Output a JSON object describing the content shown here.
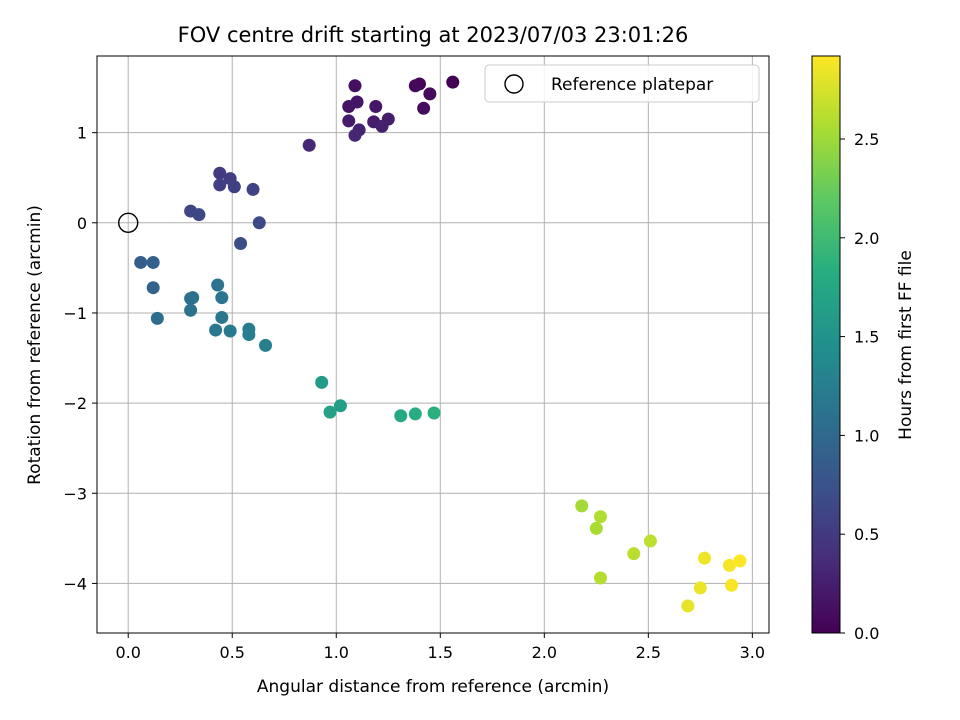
{
  "chart_data": {
    "type": "scatter",
    "title": "FOV centre drift starting at 2023/07/03 23:01:26",
    "xlabel": "Angular distance from reference (arcmin)",
    "ylabel": "Rotation from reference (arcmin)",
    "xlim": [
      -0.15,
      3.08
    ],
    "ylim": [
      -4.55,
      1.85
    ],
    "xticks": [
      0.0,
      0.5,
      1.0,
      1.5,
      2.0,
      2.5,
      3.0
    ],
    "xtick_labels": [
      "0.0",
      "0.5",
      "1.0",
      "1.5",
      "2.0",
      "2.5",
      "3.0"
    ],
    "yticks": [
      1,
      0,
      -1,
      -2,
      -3,
      -4
    ],
    "ytick_labels": [
      "1",
      "0",
      "−1",
      "−2",
      "−3",
      "−4"
    ],
    "grid": true,
    "legend": {
      "position": "top-right",
      "entries": [
        "Reference platepar"
      ]
    },
    "colormap": "viridis",
    "colorbar": {
      "label": "Hours from first FF file",
      "range": [
        0.0,
        2.92
      ],
      "ticks": [
        0.0,
        0.5,
        1.0,
        1.5,
        2.0,
        2.5
      ],
      "tick_labels": [
        "0.0",
        "0.5",
        "1.0",
        "1.5",
        "2.0",
        "2.5"
      ]
    },
    "reference_point": {
      "x": 0.0,
      "y": 0.0
    },
    "points": [
      {
        "x": 1.56,
        "y": 1.56,
        "c": 0.0
      },
      {
        "x": 1.4,
        "y": 1.54,
        "c": 0.04
      },
      {
        "x": 1.38,
        "y": 1.52,
        "c": 0.06
      },
      {
        "x": 1.45,
        "y": 1.43,
        "c": 0.08
      },
      {
        "x": 1.42,
        "y": 1.27,
        "c": 0.1
      },
      {
        "x": 1.09,
        "y": 1.52,
        "c": 0.13
      },
      {
        "x": 1.06,
        "y": 1.29,
        "c": 0.15
      },
      {
        "x": 1.1,
        "y": 1.34,
        "c": 0.17
      },
      {
        "x": 1.19,
        "y": 1.29,
        "c": 0.19
      },
      {
        "x": 1.06,
        "y": 1.13,
        "c": 0.21
      },
      {
        "x": 1.18,
        "y": 1.12,
        "c": 0.23
      },
      {
        "x": 1.25,
        "y": 1.15,
        "c": 0.25
      },
      {
        "x": 1.22,
        "y": 1.07,
        "c": 0.27
      },
      {
        "x": 1.11,
        "y": 1.03,
        "c": 0.29
      },
      {
        "x": 1.09,
        "y": 0.97,
        "c": 0.31
      },
      {
        "x": 0.87,
        "y": 0.86,
        "c": 0.33
      },
      {
        "x": 0.44,
        "y": 0.55,
        "c": 0.5
      },
      {
        "x": 0.49,
        "y": 0.49,
        "c": 0.52
      },
      {
        "x": 0.44,
        "y": 0.42,
        "c": 0.55
      },
      {
        "x": 0.51,
        "y": 0.4,
        "c": 0.57
      },
      {
        "x": 0.6,
        "y": 0.37,
        "c": 0.59
      },
      {
        "x": 0.3,
        "y": 0.13,
        "c": 0.61
      },
      {
        "x": 0.34,
        "y": 0.09,
        "c": 0.63
      },
      {
        "x": 0.63,
        "y": 0.0,
        "c": 0.66
      },
      {
        "x": 0.54,
        "y": -0.23,
        "c": 0.7
      },
      {
        "x": 0.06,
        "y": -0.44,
        "c": 0.88
      },
      {
        "x": 0.12,
        "y": -0.44,
        "c": 0.9
      },
      {
        "x": 0.12,
        "y": -0.72,
        "c": 0.95
      },
      {
        "x": 0.14,
        "y": -1.06,
        "c": 1.05
      },
      {
        "x": 0.3,
        "y": -0.84,
        "c": 1.05
      },
      {
        "x": 0.31,
        "y": -0.83,
        "c": 1.08
      },
      {
        "x": 0.3,
        "y": -0.97,
        "c": 1.1
      },
      {
        "x": 0.43,
        "y": -0.69,
        "c": 1.12
      },
      {
        "x": 0.45,
        "y": -0.83,
        "c": 1.14
      },
      {
        "x": 0.45,
        "y": -1.05,
        "c": 1.17
      },
      {
        "x": 0.42,
        "y": -1.19,
        "c": 1.18
      },
      {
        "x": 0.49,
        "y": -1.2,
        "c": 1.2
      },
      {
        "x": 0.58,
        "y": -1.18,
        "c": 1.22
      },
      {
        "x": 0.58,
        "y": -1.24,
        "c": 1.24
      },
      {
        "x": 0.66,
        "y": -1.36,
        "c": 1.26
      },
      {
        "x": 0.93,
        "y": -1.77,
        "c": 1.6
      },
      {
        "x": 1.02,
        "y": -2.03,
        "c": 1.65
      },
      {
        "x": 0.97,
        "y": -2.1,
        "c": 1.68
      },
      {
        "x": 1.31,
        "y": -2.14,
        "c": 1.78
      },
      {
        "x": 1.38,
        "y": -2.12,
        "c": 1.82
      },
      {
        "x": 1.47,
        "y": -2.11,
        "c": 1.85
      },
      {
        "x": 2.18,
        "y": -3.14,
        "c": 2.52
      },
      {
        "x": 2.25,
        "y": -3.39,
        "c": 2.55
      },
      {
        "x": 2.27,
        "y": -3.26,
        "c": 2.58
      },
      {
        "x": 2.27,
        "y": -3.94,
        "c": 2.6
      },
      {
        "x": 2.43,
        "y": -3.67,
        "c": 2.62
      },
      {
        "x": 2.51,
        "y": -3.53,
        "c": 2.64
      },
      {
        "x": 2.69,
        "y": -4.25,
        "c": 2.82
      },
      {
        "x": 2.75,
        "y": -4.05,
        "c": 2.84
      },
      {
        "x": 2.77,
        "y": -3.72,
        "c": 2.86
      },
      {
        "x": 2.89,
        "y": -3.8,
        "c": 2.88
      },
      {
        "x": 2.9,
        "y": -4.02,
        "c": 2.9
      },
      {
        "x": 2.94,
        "y": -3.75,
        "c": 2.92
      }
    ]
  }
}
